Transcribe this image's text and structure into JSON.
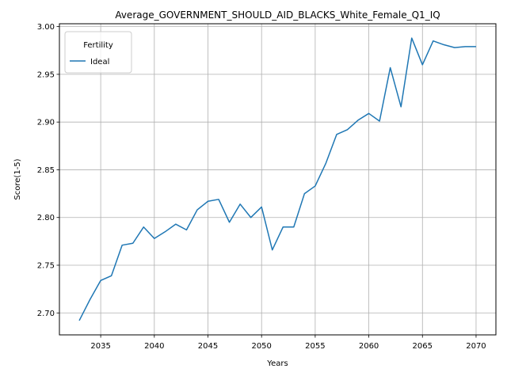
{
  "chart_data": {
    "type": "line",
    "title": "Average_GOVERNMENT_SHOULD_AID_BLACKS_White_Female_Q1_IQ",
    "xlabel": "Years",
    "ylabel": "Score(1-5)",
    "xlim": [
      2031.15,
      2071.85
    ],
    "ylim": [
      2.677,
      3.003
    ],
    "xticks": [
      2035,
      2040,
      2045,
      2050,
      2055,
      2060,
      2065,
      2070
    ],
    "yticks": [
      2.7,
      2.75,
      2.8,
      2.85,
      2.9,
      2.95,
      3.0
    ],
    "ytick_labels": [
      "2.70",
      "2.75",
      "2.80",
      "2.85",
      "2.90",
      "2.95",
      "3.00"
    ],
    "grid": true,
    "legend": {
      "title": "Fertility",
      "placement": "top-left"
    },
    "series": [
      {
        "name": "Ideal",
        "color": "#1f77b4",
        "x": [
          2033,
          2034,
          2035,
          2036,
          2037,
          2038,
          2039,
          2040,
          2041,
          2042,
          2043,
          2044,
          2045,
          2046,
          2047,
          2048,
          2049,
          2050,
          2051,
          2052,
          2053,
          2054,
          2055,
          2056,
          2057,
          2058,
          2059,
          2060,
          2061,
          2062,
          2063,
          2064,
          2065,
          2066,
          2067,
          2068,
          2069,
          2070
        ],
        "y": [
          2.692,
          2.714,
          2.734,
          2.739,
          2.771,
          2.773,
          2.79,
          2.778,
          2.785,
          2.793,
          2.787,
          2.808,
          2.817,
          2.819,
          2.795,
          2.814,
          2.8,
          2.811,
          2.766,
          2.79,
          2.79,
          2.825,
          2.833,
          2.857,
          2.887,
          2.892,
          2.902,
          2.909,
          2.901,
          2.957,
          2.916,
          2.988,
          2.96,
          2.985,
          2.981,
          2.978,
          2.979,
          2.979
        ]
      }
    ]
  }
}
